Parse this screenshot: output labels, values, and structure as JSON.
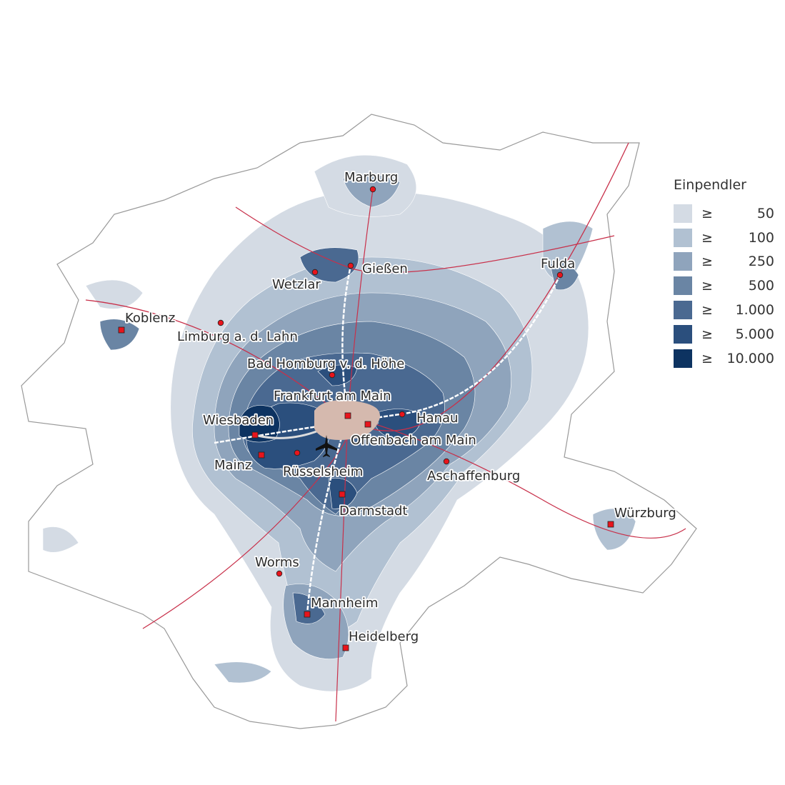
{
  "legend": {
    "title": "Einpendler",
    "symbol": "≥",
    "classes": [
      {
        "value": "50",
        "color": "#d4dbe4"
      },
      {
        "value": "100",
        "color": "#b1c1d2"
      },
      {
        "value": "250",
        "color": "#8fa4bc"
      },
      {
        "value": "500",
        "color": "#6a85a4"
      },
      {
        "value": "1.000",
        "color": "#4a6991"
      },
      {
        "value": "5.000",
        "color": "#2b4f7d"
      },
      {
        "value": "10.000",
        "color": "#0d3361"
      }
    ]
  },
  "center_color": "#d5b9ae",
  "airport_icon": "airplane-icon",
  "cities": [
    {
      "name": "Marburg",
      "marker": "dot"
    },
    {
      "name": "Gießen",
      "marker": "dot"
    },
    {
      "name": "Wetzlar",
      "marker": "dot"
    },
    {
      "name": "Fulda",
      "marker": "dot"
    },
    {
      "name": "Koblenz",
      "marker": "square"
    },
    {
      "name": "Limburg a. d. Lahn",
      "marker": "dot"
    },
    {
      "name": "Bad Homburg v. d. Höhe",
      "marker": "dot"
    },
    {
      "name": "Frankfurt am Main",
      "marker": "square"
    },
    {
      "name": "Hanau",
      "marker": "dot"
    },
    {
      "name": "Offenbach am Main",
      "marker": "square"
    },
    {
      "name": "Wiesbaden",
      "marker": "square"
    },
    {
      "name": "Mainz",
      "marker": "square"
    },
    {
      "name": "Rüsselsheim",
      "marker": "dot"
    },
    {
      "name": "Aschaffenburg",
      "marker": "dot"
    },
    {
      "name": "Darmstadt",
      "marker": "square"
    },
    {
      "name": "Würzburg",
      "marker": "square"
    },
    {
      "name": "Worms",
      "marker": "dot"
    },
    {
      "name": "Mannheim",
      "marker": "square"
    },
    {
      "name": "Heidelberg",
      "marker": "square"
    }
  ]
}
